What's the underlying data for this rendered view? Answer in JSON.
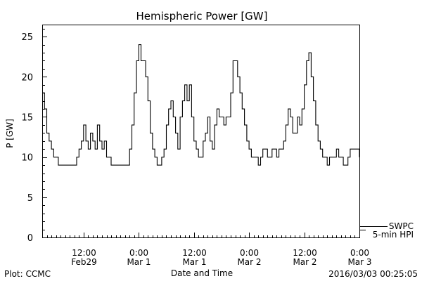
{
  "chart_data": {
    "type": "line",
    "title": "Hemispheric Power [GW]",
    "ylabel": "P [GW]",
    "xlabel": "Date and Time",
    "ylim": [
      0,
      26.5
    ],
    "yticks": [
      0,
      5,
      10,
      15,
      20,
      25
    ],
    "xlim": [
      "2016-02-29T03:00",
      "2016-03-03T00:00"
    ],
    "xticks": [
      {
        "time": "2016-02-29T12:00",
        "line1": "12:00",
        "line2": "Feb29"
      },
      {
        "time": "2016-03-01T00:00",
        "line1": "0:00",
        "line2": "Mar 1"
      },
      {
        "time": "2016-03-01T12:00",
        "line1": "12:00",
        "line2": "Mar 1"
      },
      {
        "time": "2016-03-02T00:00",
        "line1": "0:00",
        "line2": "Mar 2"
      },
      {
        "time": "2016-03-02T12:00",
        "line1": "12:00",
        "line2": "Mar 2"
      },
      {
        "time": "2016-03-03T00:00",
        "line1": "0:00",
        "line2": "Mar 3"
      }
    ],
    "series": [
      {
        "name": "5-min HPI",
        "color": "#000000",
        "x": [
          "2016-02-29T03:00",
          "2016-02-29T03:30",
          "2016-02-29T04:00",
          "2016-02-29T04:30",
          "2016-02-29T05:00",
          "2016-02-29T05:30",
          "2016-02-29T06:00",
          "2016-02-29T06:30",
          "2016-02-29T07:00",
          "2016-02-29T08:00",
          "2016-02-29T09:00",
          "2016-02-29T10:00",
          "2016-02-29T10:30",
          "2016-02-29T11:00",
          "2016-02-29T11:30",
          "2016-02-29T12:00",
          "2016-02-29T12:30",
          "2016-02-29T13:00",
          "2016-02-29T13:30",
          "2016-02-29T14:00",
          "2016-02-29T14:30",
          "2016-02-29T15:00",
          "2016-02-29T15:30",
          "2016-02-29T16:00",
          "2016-02-29T16:30",
          "2016-02-29T17:00",
          "2016-02-29T17:30",
          "2016-02-29T18:00",
          "2016-02-29T18:30",
          "2016-02-29T19:00",
          "2016-02-29T20:00",
          "2016-02-29T21:00",
          "2016-02-29T22:00",
          "2016-02-29T22:30",
          "2016-02-29T23:00",
          "2016-02-29T23:30",
          "2016-03-01T00:00",
          "2016-03-01T00:30",
          "2016-03-01T01:00",
          "2016-03-01T01:30",
          "2016-03-01T02:00",
          "2016-03-01T02:30",
          "2016-03-01T03:00",
          "2016-03-01T03:30",
          "2016-03-01T04:00",
          "2016-03-01T04:30",
          "2016-03-01T05:00",
          "2016-03-01T05:30",
          "2016-03-01T06:00",
          "2016-03-01T06:30",
          "2016-03-01T07:00",
          "2016-03-01T07:30",
          "2016-03-01T08:00",
          "2016-03-01T08:30",
          "2016-03-01T09:00",
          "2016-03-01T09:30",
          "2016-03-01T10:00",
          "2016-03-01T10:30",
          "2016-03-01T11:00",
          "2016-03-01T11:30",
          "2016-03-01T12:00",
          "2016-03-01T12:30",
          "2016-03-01T13:00",
          "2016-03-01T13:30",
          "2016-03-01T14:00",
          "2016-03-01T14:30",
          "2016-03-01T15:00",
          "2016-03-01T15:30",
          "2016-03-01T16:00",
          "2016-03-01T16:30",
          "2016-03-01T17:00",
          "2016-03-01T17:30",
          "2016-03-01T18:00",
          "2016-03-01T18:30",
          "2016-03-01T19:00",
          "2016-03-01T19:30",
          "2016-03-01T20:00",
          "2016-03-01T20:30",
          "2016-03-01T21:00",
          "2016-03-01T21:30",
          "2016-03-01T22:00",
          "2016-03-01T22:30",
          "2016-03-01T23:00",
          "2016-03-01T23:30",
          "2016-03-02T00:00",
          "2016-03-02T00:30",
          "2016-03-02T01:00",
          "2016-03-02T01:30",
          "2016-03-02T02:00",
          "2016-03-02T02:30",
          "2016-03-02T03:00",
          "2016-03-02T03:30",
          "2016-03-02T04:00",
          "2016-03-02T05:00",
          "2016-03-02T06:00",
          "2016-03-02T06:30",
          "2016-03-02T07:00",
          "2016-03-02T07:30",
          "2016-03-02T08:00",
          "2016-03-02T08:30",
          "2016-03-02T09:00",
          "2016-03-02T09:30",
          "2016-03-02T10:00",
          "2016-03-02T10:30",
          "2016-03-02T11:00",
          "2016-03-02T11:30",
          "2016-03-02T12:00",
          "2016-03-02T12:30",
          "2016-03-02T13:00",
          "2016-03-02T13:30",
          "2016-03-02T14:00",
          "2016-03-02T14:30",
          "2016-03-02T15:00",
          "2016-03-02T15:30",
          "2016-03-02T16:00",
          "2016-03-02T16:30",
          "2016-03-02T17:00",
          "2016-03-02T17:30",
          "2016-03-02T18:00",
          "2016-03-02T18:30",
          "2016-03-02T19:00",
          "2016-03-02T19:30",
          "2016-03-02T20:00",
          "2016-03-02T20:30",
          "2016-03-02T21:00",
          "2016-03-02T21:30",
          "2016-03-02T22:00",
          "2016-03-02T22:30",
          "2016-03-02T23:00",
          "2016-03-02T23:30",
          "2016-03-03T00:00"
        ],
        "values": [
          18,
          16,
          13,
          12,
          11,
          10,
          10,
          9,
          9,
          9,
          9,
          9,
          10,
          11,
          12,
          14,
          12,
          11,
          13,
          12,
          11,
          14,
          12,
          11,
          12,
          10,
          10,
          9,
          9,
          9,
          9,
          9,
          11,
          14,
          18,
          22,
          24,
          22,
          22,
          20,
          17,
          13,
          11,
          10,
          9,
          9,
          10,
          11,
          14,
          16,
          17,
          15,
          13,
          11,
          15,
          17,
          19,
          17,
          19,
          15,
          12,
          11,
          10,
          10,
          12,
          13,
          15,
          12,
          11,
          14,
          16,
          15,
          15,
          14,
          15,
          15,
          18,
          22,
          22,
          20,
          18,
          16,
          14,
          12,
          11,
          10,
          10,
          10,
          9,
          10,
          11,
          11,
          10,
          11,
          10,
          11,
          11,
          12,
          14,
          16,
          15,
          13,
          13,
          15,
          14,
          16,
          19,
          22,
          23,
          20,
          17,
          14,
          12,
          11,
          10,
          10,
          9,
          10,
          10,
          10,
          11,
          10,
          10,
          9,
          9,
          10,
          11,
          11,
          11,
          11,
          10
        ]
      }
    ],
    "legend": {
      "placement": "right-bottom",
      "line1": "SWPC",
      "line2": "5-min HPI"
    },
    "grid": false
  },
  "footer": {
    "left": "Plot: CCMC",
    "right": "2016/03/03 00:25:05"
  }
}
